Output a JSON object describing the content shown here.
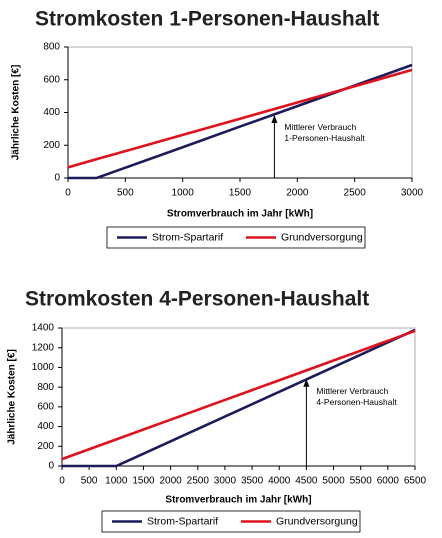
{
  "chart_data": [
    {
      "type": "line",
      "title": "Stromkosten 1-Personen-Haushalt",
      "x_label": "Stromverbrauch im Jahr [kWh]",
      "y_label": "Jährliche Kosten [€]",
      "x": [
        0,
        250,
        500,
        1000,
        1500,
        2000,
        2500,
        3000
      ],
      "series": [
        {
          "name": "Strom-Spartarif",
          "color": "#1c1c5c",
          "values": [
            0,
            0,
            63,
            188,
            314,
            439,
            565,
            690
          ]
        },
        {
          "name": "Grundversorgung",
          "color": "#e0101c",
          "values": [
            65,
            115,
            164,
            263,
            362,
            461,
            560,
            660
          ]
        }
      ],
      "xlim": [
        0,
        3000
      ],
      "xticks": [
        0,
        500,
        1000,
        1500,
        2000,
        2500,
        3000
      ],
      "ylim": [
        0,
        800
      ],
      "yticks": [
        0,
        200,
        400,
        600,
        800
      ],
      "annotation": {
        "text": [
          "Mittlerer Verbrauch",
          "1-Personen-Haushalt"
        ],
        "x": 1800,
        "y": 385
      },
      "legend": "bottom"
    },
    {
      "type": "line",
      "title": "Stromkosten 4-Personen-Haushalt",
      "x_label": "Stromverbrauch im Jahr [kWh]",
      "y_label": "Jährliche Kosten [€]",
      "x": [
        0,
        500,
        1000,
        1500,
        2000,
        2500,
        3000,
        3500,
        4000,
        4500,
        5000,
        5500,
        6000,
        6500
      ],
      "series": [
        {
          "name": "Strom-Spartarif",
          "color": "#1c1c5c",
          "values": [
            0,
            0,
            0,
            125,
            251,
            376,
            502,
            627,
            753,
            878,
            1004,
            1129,
            1255,
            1380
          ]
        },
        {
          "name": "Grundversorgung",
          "color": "#e0101c",
          "values": [
            70,
            170,
            270,
            370,
            470,
            570,
            670,
            770,
            870,
            970,
            1070,
            1170,
            1270,
            1370
          ]
        }
      ],
      "xlim": [
        0,
        6500
      ],
      "xticks": [
        0,
        500,
        1000,
        1500,
        2000,
        2500,
        3000,
        3500,
        4000,
        4500,
        5000,
        5500,
        6000,
        6500
      ],
      "ylim": [
        0,
        1400
      ],
      "yticks": [
        0,
        200,
        400,
        600,
        800,
        1000,
        1200,
        1400
      ],
      "annotation": {
        "text": [
          "Mittlerer Verbrauch",
          "4-Personen-Haushalt"
        ],
        "x": 4500,
        "y": 885
      },
      "legend": "bottom"
    }
  ]
}
